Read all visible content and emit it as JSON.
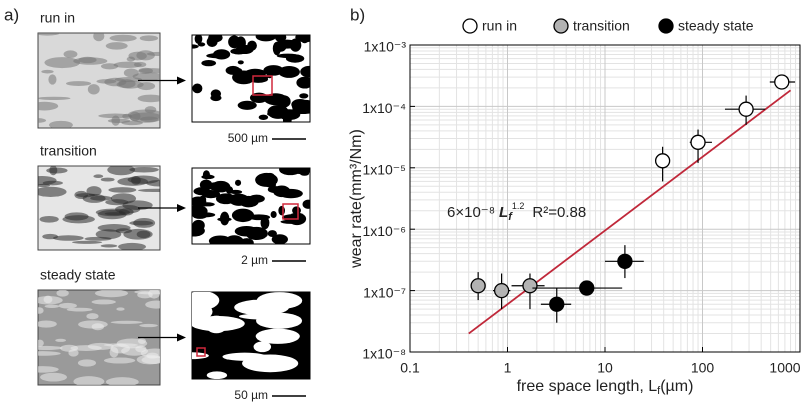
{
  "panel_a": {
    "label": "a)",
    "rows": [
      {
        "label": "run in",
        "scale": "500 µm"
      },
      {
        "label": "transition",
        "scale": "2 µm"
      },
      {
        "label": "steady state",
        "scale": "50 µm"
      }
    ]
  },
  "chart_data": {
    "type": "scatter",
    "panel_label": "b)",
    "xlabel": [
      "free space length, L",
      "f",
      "(µm)"
    ],
    "ylabel": "wear rate(mm³/Nm)",
    "log_x": true,
    "log_y": true,
    "grid": true,
    "legend": "top",
    "xlim": [
      0.1,
      1000
    ],
    "ylim": [
      1e-08,
      0.001
    ],
    "xticks": [
      0.1,
      1,
      10,
      100,
      1000
    ],
    "yticks": [
      {
        "value": 1e-08,
        "label": "1x10⁻⁸"
      },
      {
        "value": 1e-07,
        "label": "1x10⁻⁷"
      },
      {
        "value": 1e-06,
        "label": "1x10⁻⁶"
      },
      {
        "value": 1e-05,
        "label": "1x10⁻⁵"
      },
      {
        "value": 0.0001,
        "label": "1x10⁻⁴"
      },
      {
        "value": 0.001,
        "label": "1x10⁻³"
      }
    ],
    "series": [
      {
        "name": "run in",
        "color": "#ffffff",
        "x": [
          39,
          90,
          280,
          650
        ],
        "values": [
          1.3e-05,
          2.6e-05,
          9e-05,
          0.00025
        ],
        "y_low": [
          6e-06,
          1.2e-05,
          5e-05,
          null
        ],
        "y_high": [
          2.2e-05,
          4.2e-05,
          0.00015,
          null
        ],
        "x_low": [
          null,
          74,
          170,
          490
        ],
        "x_high": [
          null,
          125,
          440,
          890
        ]
      },
      {
        "name": "transition",
        "color": "#b3b3b3",
        "x": [
          0.5,
          0.87,
          1.7
        ],
        "values": [
          1.2e-07,
          1e-07,
          1.2e-07
        ],
        "y_low": [
          7e-08,
          5e-08,
          5e-08
        ],
        "y_high": [
          2e-07,
          1.9e-07,
          1.9e-07
        ],
        "x_low": [
          null,
          0.71,
          1.1
        ],
        "x_high": [
          null,
          1.07,
          2.4
        ]
      },
      {
        "name": "steady state",
        "color": "#000000",
        "x": [
          3.2,
          6.5,
          16
        ],
        "values": [
          6e-08,
          1.1e-07,
          3e-07
        ],
        "y_low": [
          3e-08,
          null,
          1.6e-07
        ],
        "y_high": [
          1.1e-07,
          null,
          5.5e-07
        ],
        "x_low": [
          2.2,
          1.8,
          10
        ],
        "x_high": [
          4.5,
          15,
          25
        ]
      }
    ],
    "fit": {
      "coefficient": 6e-08,
      "coefficient_label": "6×10⁻⁸",
      "variable": "L",
      "subscript": "f",
      "exponent": 1.2,
      "r2_label": "R²=0.88",
      "x_range": [
        0.4,
        800
      ],
      "color": "#c0283a"
    }
  }
}
